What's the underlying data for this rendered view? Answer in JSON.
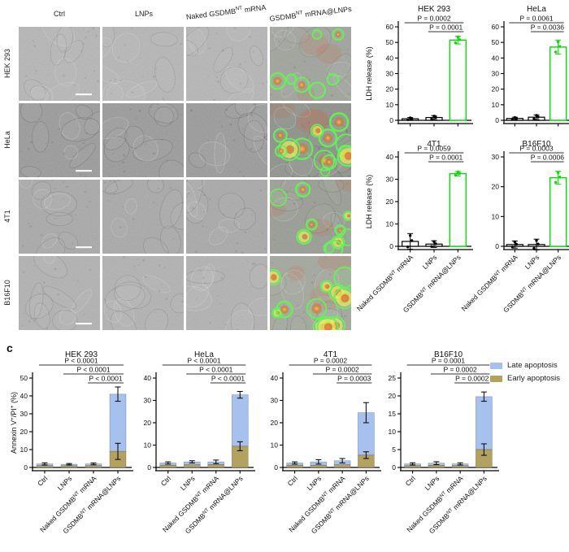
{
  "panel_c_label": "c",
  "microscopy": {
    "col_headers": [
      "Ctrl",
      "LNPs",
      "Naked GSDMB^NT^ mRNA",
      "GSDMB^NT^ mRNA@LNPs"
    ],
    "row_labels": [
      "HEK 293",
      "HeLa",
      "4T1",
      "B16F10"
    ]
  },
  "colors": {
    "bar_green": "#00e100",
    "late_blue": "#a6c1ee",
    "early_tan": "#b3a25d",
    "axis_black": "#000000"
  },
  "legend": {
    "items": [
      {
        "label": "Late apoptosis",
        "color_key": "late_blue"
      },
      {
        "label": "Early apoptosis",
        "color_key": "early_tan"
      }
    ]
  },
  "chart_data": [
    {
      "id": "ldh-hek293",
      "type": "bar",
      "title": "HEK 293",
      "ylabel": "LDH release (%)",
      "categories": [
        "Naked GSDMB^NT^ mRNA",
        "LNPs",
        "GSDMB^NT^ mRNA@LNPs"
      ],
      "values": [
        1.0,
        1.8,
        51.5
      ],
      "errors": [
        0.8,
        1.2,
        2.5
      ],
      "bar_styles": [
        "black",
        "black",
        "green"
      ],
      "ylim": [
        0,
        60
      ],
      "ytick_step": 10,
      "show_xlabels": false,
      "pvalues": [
        {
          "label": "P = 0.0002",
          "from": 0,
          "to": 2
        },
        {
          "label": "P = 0.0001",
          "from": 1,
          "to": 2
        }
      ]
    },
    {
      "id": "ldh-hela",
      "type": "bar",
      "title": "HeLa",
      "ylabel": null,
      "categories": [
        "Naked GSDMB^NT^ mRNA",
        "LNPs",
        "GSDMB^NT^ mRNA@LNPs"
      ],
      "values": [
        1.2,
        2.0,
        47.0
      ],
      "errors": [
        0.8,
        1.5,
        4.5
      ],
      "bar_styles": [
        "black",
        "black",
        "green"
      ],
      "ylim": [
        0,
        60
      ],
      "ytick_step": 10,
      "show_xlabels": false,
      "pvalues": [
        {
          "label": "P = 0.0061",
          "from": 0,
          "to": 2
        },
        {
          "label": "P = 0.0036",
          "from": 1,
          "to": 2
        }
      ]
    },
    {
      "id": "ldh-4t1",
      "type": "bar",
      "title": "4T1",
      "ylabel": "LDH release (%)",
      "categories": [
        "Naked GSDMB^NT^ mRNA",
        "LNPs",
        "GSDMB^NT^ mRNA@LNPs"
      ],
      "values": [
        2.2,
        1.0,
        32.5
      ],
      "errors": [
        3.5,
        1.5,
        1.0
      ],
      "bar_styles": [
        "black",
        "black",
        "green"
      ],
      "ylim": [
        0,
        40
      ],
      "ytick_step": 10,
      "show_xlabels": true,
      "pvalues": [
        {
          "label": "P = 0.0059",
          "from": 0,
          "to": 2
        },
        {
          "label": "P = 0.0001",
          "from": 1,
          "to": 2
        }
      ]
    },
    {
      "id": "ldh-b16f10",
      "type": "bar",
      "title": "B16F10",
      "ylabel": null,
      "categories": [
        "Naked GSDMB^NT^ mRNA",
        "LNPs",
        "GSDMB^NT^ mRNA@LNPs"
      ],
      "values": [
        0.6,
        0.6,
        23.0
      ],
      "errors": [
        1.2,
        1.8,
        2.2
      ],
      "bar_styles": [
        "black",
        "black",
        "green"
      ],
      "ylim": [
        0,
        30
      ],
      "ytick_step": 10,
      "show_xlabels": true,
      "pvalues": [
        {
          "label": "P = 0.0003",
          "from": 0,
          "to": 2
        },
        {
          "label": "P = 0.0006",
          "from": 1,
          "to": 2
        }
      ]
    },
    {
      "id": "apo-hek293",
      "type": "stacked-bar",
      "title": "HEK 293",
      "ylabel": "Annexin V^+^/PI^+^ (%)",
      "categories": [
        "Ctrl",
        "LNPs",
        "Naked GSDMB^NT^ mRNA",
        "GSDMB^NT^ mRNA@LNPs"
      ],
      "series": [
        {
          "name": "Early apoptosis",
          "values": [
            1.0,
            0.9,
            1.0,
            9.0
          ]
        },
        {
          "name": "Late apoptosis",
          "values": [
            1.0,
            0.9,
            1.0,
            32.0
          ]
        }
      ],
      "errors_total": [
        0.6,
        0.4,
        0.5,
        4.0
      ],
      "errors_early": [
        0,
        0,
        0,
        4.5
      ],
      "ylim": [
        0,
        50
      ],
      "ytick_step": 10,
      "show_xlabels": true,
      "pvalues": [
        {
          "label": "P < 0.0001",
          "from": 0,
          "to": 3
        },
        {
          "label": "P < 0.0001",
          "from": 1,
          "to": 3
        },
        {
          "label": "P < 0.0001",
          "from": 2,
          "to": 3
        }
      ]
    },
    {
      "id": "apo-hela",
      "type": "stacked-bar",
      "title": "HeLa",
      "ylabel": null,
      "categories": [
        "Ctrl",
        "LNPs",
        "Naked GSDMB^NT^ mRNA",
        "GSDMB^NT^ mRNA@LNPs"
      ],
      "series": [
        {
          "name": "Early apoptosis",
          "values": [
            1.0,
            1.2,
            1.3,
            9.5
          ]
        },
        {
          "name": "Late apoptosis",
          "values": [
            1.0,
            1.3,
            1.2,
            23.0
          ]
        }
      ],
      "errors_total": [
        0.5,
        0.5,
        0.8,
        1.5
      ],
      "errors_early": [
        0,
        0,
        0,
        2.0
      ],
      "ylim": [
        0,
        40
      ],
      "ytick_step": 10,
      "show_xlabels": true,
      "pvalues": [
        {
          "label": "P < 0.0001",
          "from": 0,
          "to": 3
        },
        {
          "label": "P < 0.0001",
          "from": 1,
          "to": 3
        },
        {
          "label": "P < 0.0001",
          "from": 2,
          "to": 3
        }
      ]
    },
    {
      "id": "apo-4t1",
      "type": "stacked-bar",
      "title": "4T1",
      "ylabel": null,
      "categories": [
        "Ctrl",
        "LNPs",
        "Naked GSDMB^NT^ mRNA",
        "GSDMB^NT^ mRNA@LNPs"
      ],
      "series": [
        {
          "name": "Early apoptosis",
          "values": [
            1.0,
            1.0,
            1.2,
            5.5
          ]
        },
        {
          "name": "Late apoptosis",
          "values": [
            1.0,
            1.5,
            1.8,
            19.0
          ]
        }
      ],
      "errors_total": [
        0.5,
        1.0,
        1.0,
        4.5
      ],
      "errors_early": [
        0,
        0,
        0,
        1.5
      ],
      "ylim": [
        0,
        40
      ],
      "ytick_step": 10,
      "show_xlabels": true,
      "pvalues": [
        {
          "label": "P = 0.0002",
          "from": 0,
          "to": 3
        },
        {
          "label": "P = 0.0002",
          "from": 1,
          "to": 3
        },
        {
          "label": "P = 0.0003",
          "from": 2,
          "to": 3
        }
      ]
    },
    {
      "id": "apo-b16f10",
      "type": "stacked-bar",
      "title": "B16F10",
      "ylabel": null,
      "categories": [
        "Ctrl",
        "LNPs",
        "Naked GSDMB^NT^ mRNA",
        "GSDMB^NT^ mRNA@LNPs"
      ],
      "series": [
        {
          "name": "Early apoptosis",
          "values": [
            0.5,
            0.6,
            0.5,
            5.0
          ]
        },
        {
          "name": "Late apoptosis",
          "values": [
            0.5,
            0.6,
            0.5,
            14.8
          ]
        }
      ],
      "errors_total": [
        0.3,
        0.4,
        0.3,
        1.3
      ],
      "errors_early": [
        0,
        0,
        0,
        1.6
      ],
      "ylim": [
        0,
        25
      ],
      "ytick_step": 5,
      "show_xlabels": true,
      "pvalues": [
        {
          "label": "P = 0.0001",
          "from": 0,
          "to": 3
        },
        {
          "label": "P = 0.0002",
          "from": 1,
          "to": 3
        },
        {
          "label": "P = 0.0002",
          "from": 2,
          "to": 3
        }
      ]
    }
  ]
}
